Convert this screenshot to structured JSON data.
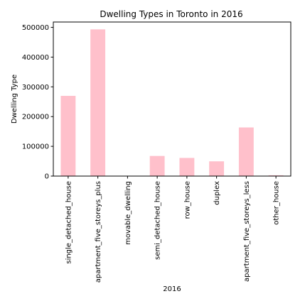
{
  "chart_data": {
    "type": "bar",
    "title": "Dwelling Types in Toronto in 2016",
    "xlabel": "2016",
    "ylabel": "Dwelling Type",
    "categories": [
      "single_detached_house",
      "apartment_five_storeys_plus",
      "movable_dwelling",
      "semi_detached_house",
      "row_house",
      "duplex",
      "apartment_five_storeys_less",
      "other_house"
    ],
    "values": [
      269680,
      493270,
      20,
      67610,
      61040,
      49570,
      163470,
      2660
    ],
    "ylim": [
      0,
      518000
    ],
    "yticks": [
      0,
      100000,
      200000,
      300000,
      400000,
      500000
    ],
    "yticklabels": [
      "0",
      "100000",
      "200000",
      "300000",
      "400000",
      "500000"
    ],
    "bar_color": "#ffc0cb",
    "grid": false,
    "legend": "none"
  }
}
